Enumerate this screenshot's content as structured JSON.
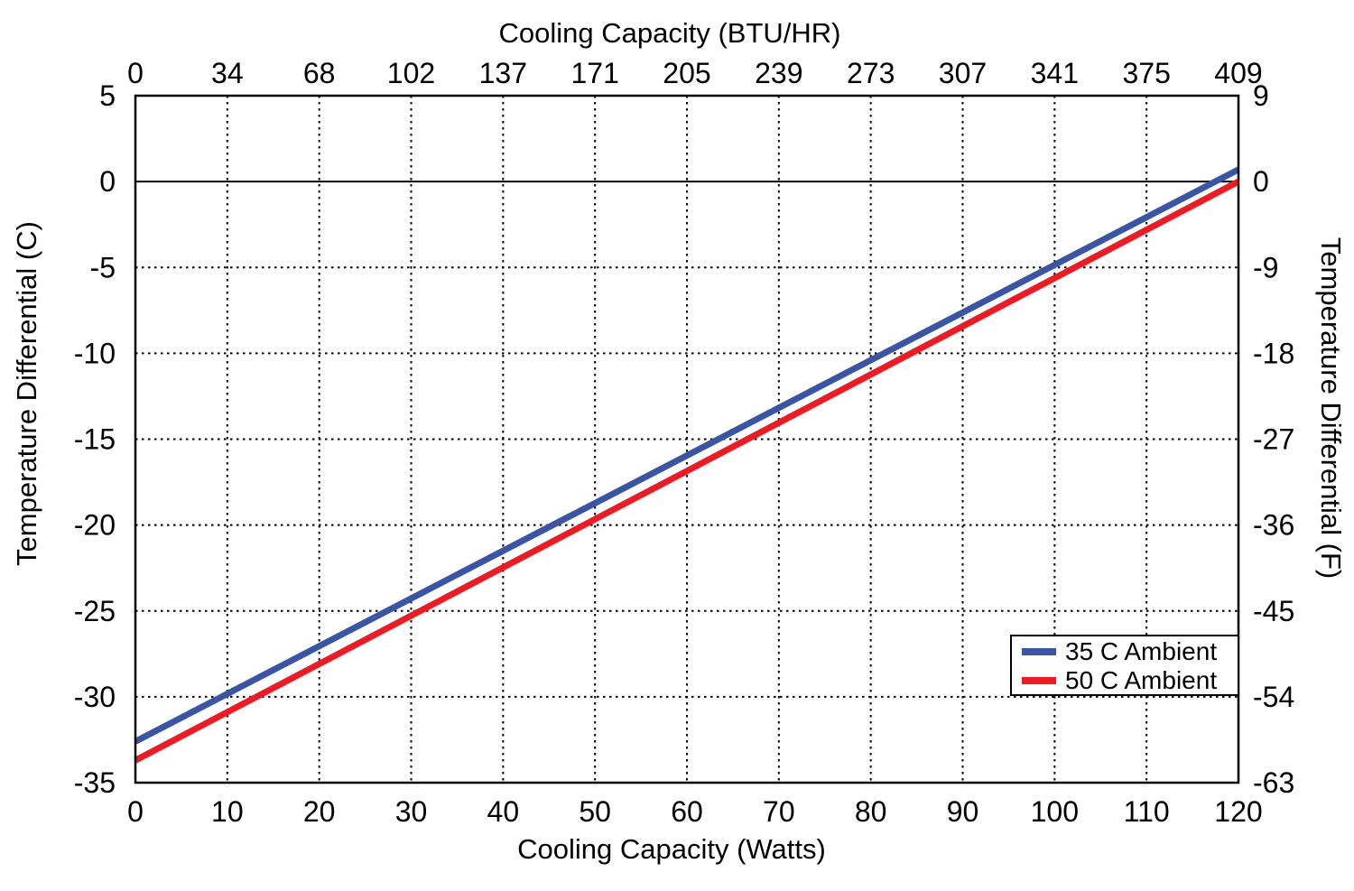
{
  "chart_data": {
    "type": "line",
    "top_axis": {
      "label": "Cooling Capacity (BTU/HR)",
      "ticks": [
        "0",
        "34",
        "68",
        "102",
        "137",
        "171",
        "205",
        "239",
        "273",
        "307",
        "341",
        "375",
        "409"
      ]
    },
    "bottom_axis": {
      "label": "Cooling Capacity (Watts)",
      "ticks": [
        0,
        10,
        20,
        30,
        40,
        50,
        60,
        70,
        80,
        90,
        100,
        110,
        120
      ],
      "range": [
        0,
        120
      ]
    },
    "left_axis": {
      "label": "Temperature Differential (C)",
      "ticks": [
        5,
        0,
        -5,
        -10,
        -15,
        -20,
        -25,
        -30,
        -35
      ],
      "range": [
        -35,
        5
      ]
    },
    "right_axis": {
      "label": "Temperature Differential (F)",
      "ticks": [
        9,
        0,
        -9,
        -18,
        -27,
        -36,
        -45,
        -54,
        -63
      ]
    },
    "grid": {
      "style": "dotted",
      "zero_line": "solid",
      "color": "#000000"
    },
    "series": [
      {
        "name": "35 C Ambient",
        "color": "#3b55a5",
        "points": [
          {
            "x": 0,
            "y": -32.6
          },
          {
            "x": 120,
            "y": 0.7
          }
        ]
      },
      {
        "name": "50 C Ambient",
        "color": "#ed1c24",
        "points": [
          {
            "x": 0,
            "y": -33.7
          },
          {
            "x": 120,
            "y": 0.0
          }
        ]
      }
    ],
    "legend": {
      "position": "inside-bottom-right",
      "entries": [
        "35 C Ambient",
        "50 C Ambient"
      ]
    }
  }
}
